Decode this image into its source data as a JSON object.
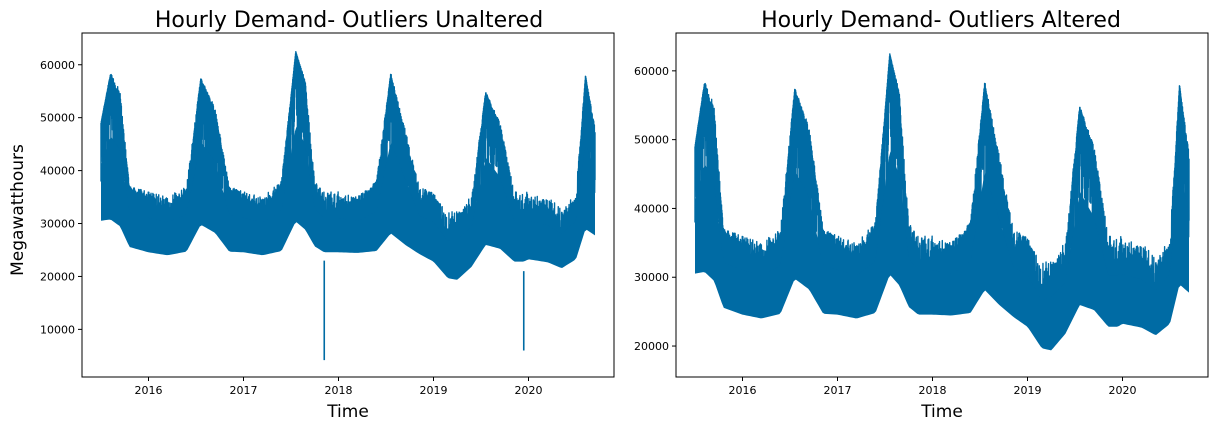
{
  "chart_data": [
    {
      "type": "line",
      "title": "Hourly Demand- Outliers Unaltered",
      "xlabel": "Time",
      "ylabel": "Megawatthours",
      "xlim": [
        2015.3,
        2020.9
      ],
      "ylim": [
        1000,
        66000
      ],
      "x_ticks": [
        2016,
        2017,
        2018,
        2019,
        2020
      ],
      "x_tick_labels": [
        "2016",
        "2017",
        "2018",
        "2019",
        "2020"
      ],
      "y_ticks": [
        10000,
        20000,
        30000,
        40000,
        50000,
        60000
      ],
      "y_tick_labels": [
        "10000",
        "20000",
        "30000",
        "40000",
        "50000",
        "60000"
      ],
      "grid": false,
      "series": [
        {
          "color": "#006ba4",
          "x": [
            2015.5,
            2015.6,
            2015.7,
            2015.8,
            2016.0,
            2016.2,
            2016.4,
            2016.55,
            2016.7,
            2016.85,
            2017.0,
            2017.2,
            2017.4,
            2017.55,
            2017.65,
            2017.75,
            2017.85,
            2018.0,
            2018.2,
            2018.4,
            2018.55,
            2018.7,
            2018.85,
            2019.0,
            2019.15,
            2019.25,
            2019.4,
            2019.55,
            2019.7,
            2019.85,
            2019.95,
            2020.0,
            2020.2,
            2020.35,
            2020.5,
            2020.6,
            2020.7
          ],
          "y": [
            49000,
            58000,
            52000,
            36000,
            33000,
            31000,
            33000,
            57000,
            50000,
            36000,
            33000,
            31000,
            36000,
            62500,
            56000,
            33000,
            31000,
            30000,
            31000,
            35000,
            58000,
            45000,
            33000,
            32000,
            25000,
            27000,
            31000,
            54500,
            47000,
            31000,
            29000,
            30000,
            29000,
            27000,
            31000,
            58000,
            46000
          ],
          "envelope_high": [
            49000,
            58500,
            55000,
            37000,
            36000,
            35000,
            37000,
            57500,
            52000,
            37000,
            36000,
            35000,
            38000,
            62500,
            57000,
            38000,
            36000,
            36000,
            35000,
            38000,
            58500,
            48000,
            37000,
            36000,
            32000,
            33000,
            35000,
            55000,
            49000,
            36000,
            36000,
            36000,
            35000,
            33000,
            36000,
            58000,
            48000
          ],
          "envelope_low": [
            28000,
            27000,
            26000,
            24000,
            23000,
            22500,
            23000,
            26000,
            25000,
            23000,
            23000,
            22500,
            23000,
            26000,
            25000,
            24000,
            23000,
            23000,
            23000,
            23000,
            24000,
            23000,
            22500,
            21000,
            18000,
            17500,
            20000,
            22000,
            22000,
            21000,
            21000,
            21500,
            21000,
            20000,
            21500,
            25000,
            25000
          ],
          "spikes": [
            {
              "x": 2017.85,
              "y": 4200
            },
            {
              "x": 2019.95,
              "y": 6000
            }
          ]
        }
      ]
    },
    {
      "type": "line",
      "title": "Hourly Demand- Outliers Altered",
      "xlabel": "Time",
      "ylabel": "",
      "xlim": [
        2015.3,
        2020.9
      ],
      "ylim": [
        15500,
        65500
      ],
      "x_ticks": [
        2016,
        2017,
        2018,
        2019,
        2020
      ],
      "x_tick_labels": [
        "2016",
        "2017",
        "2018",
        "2019",
        "2020"
      ],
      "y_ticks": [
        20000,
        30000,
        40000,
        50000,
        60000
      ],
      "y_tick_labels": [
        "20000",
        "30000",
        "40000",
        "50000",
        "60000"
      ],
      "grid": false,
      "series": [
        {
          "color": "#006ba4",
          "x": [
            2015.5,
            2015.6,
            2015.7,
            2015.8,
            2016.0,
            2016.2,
            2016.4,
            2016.55,
            2016.7,
            2016.85,
            2017.0,
            2017.2,
            2017.4,
            2017.55,
            2017.65,
            2017.75,
            2017.85,
            2018.0,
            2018.2,
            2018.4,
            2018.55,
            2018.7,
            2018.85,
            2019.0,
            2019.15,
            2019.25,
            2019.4,
            2019.55,
            2019.7,
            2019.85,
            2019.95,
            2020.0,
            2020.2,
            2020.35,
            2020.5,
            2020.6,
            2020.7
          ],
          "y": [
            49000,
            58000,
            52000,
            36000,
            33000,
            31000,
            33000,
            57000,
            50000,
            36000,
            33000,
            31000,
            36000,
            62500,
            56000,
            33000,
            31000,
            30000,
            31000,
            35000,
            58000,
            45000,
            33000,
            32000,
            25000,
            27000,
            31000,
            54500,
            47000,
            31000,
            29000,
            30000,
            29000,
            27000,
            31000,
            58000,
            46000
          ],
          "envelope_high": [
            49000,
            58500,
            55000,
            37000,
            36000,
            35000,
            37000,
            57500,
            52000,
            37000,
            36000,
            35000,
            38000,
            62500,
            57000,
            38000,
            36000,
            36000,
            35000,
            38000,
            58500,
            48000,
            37000,
            36000,
            32000,
            33000,
            35000,
            55000,
            49000,
            36000,
            36000,
            36000,
            35000,
            33000,
            36000,
            58000,
            48000
          ],
          "envelope_low": [
            28000,
            27000,
            26000,
            24000,
            23000,
            22500,
            23000,
            26000,
            25000,
            23000,
            23000,
            22500,
            23000,
            26000,
            25000,
            24000,
            23000,
            23000,
            23000,
            23000,
            24000,
            23000,
            22500,
            21000,
            18000,
            17500,
            20000,
            22000,
            22000,
            21000,
            21000,
            21500,
            21000,
            20000,
            21500,
            25000,
            25000
          ],
          "spikes": []
        }
      ]
    }
  ]
}
